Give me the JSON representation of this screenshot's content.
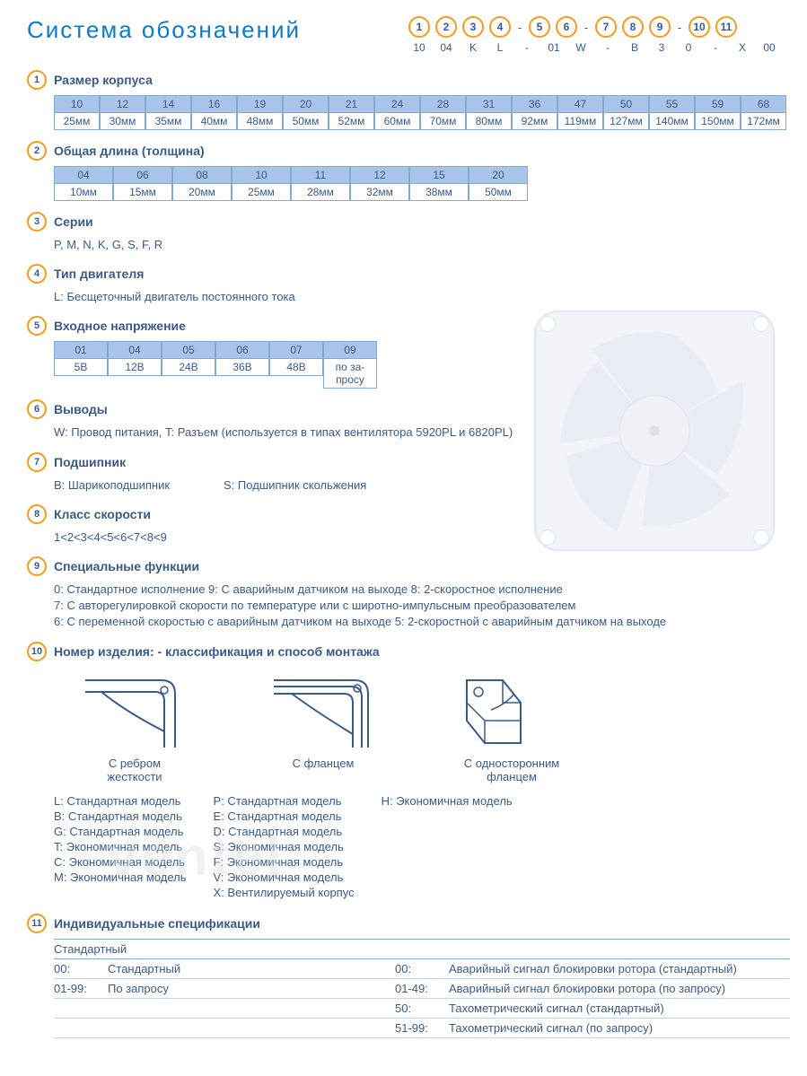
{
  "colors": {
    "accent_orange": "#f59c1a",
    "text_blue": "#3a5a8a",
    "title_blue": "#0a7dc4",
    "header_bg": "#a8c4e8",
    "border": "#88a8d4",
    "row_border": "#c8d4e8"
  },
  "title": "Система обозначений",
  "code_positions": [
    "1",
    "2",
    "3",
    "4",
    "5",
    "6",
    "7",
    "8",
    "9",
    "10",
    "11"
  ],
  "code_example": [
    "10",
    "04",
    "K",
    "L",
    "01",
    "W",
    "B",
    "3",
    "0",
    "X",
    "00"
  ],
  "sections": {
    "s1": {
      "title": "Размер корпуса",
      "table": [
        {
          "c": "10",
          "v": "25мм"
        },
        {
          "c": "12",
          "v": "30мм"
        },
        {
          "c": "14",
          "v": "35мм"
        },
        {
          "c": "16",
          "v": "40мм"
        },
        {
          "c": "19",
          "v": "48мм"
        },
        {
          "c": "20",
          "v": "50мм"
        },
        {
          "c": "21",
          "v": "52мм"
        },
        {
          "c": "24",
          "v": "60мм"
        },
        {
          "c": "28",
          "v": "70мм"
        },
        {
          "c": "31",
          "v": "80мм"
        },
        {
          "c": "36",
          "v": "92мм"
        },
        {
          "c": "47",
          "v": "119мм"
        },
        {
          "c": "50",
          "v": "127мм"
        },
        {
          "c": "55",
          "v": "140мм"
        },
        {
          "c": "59",
          "v": "150мм"
        },
        {
          "c": "68",
          "v": "172мм"
        }
      ]
    },
    "s2": {
      "title": "Общая длина (толщина)",
      "table": [
        {
          "c": "04",
          "v": "10мм"
        },
        {
          "c": "06",
          "v": "15мм"
        },
        {
          "c": "08",
          "v": "20мм"
        },
        {
          "c": "10",
          "v": "25мм"
        },
        {
          "c": "11",
          "v": "28мм"
        },
        {
          "c": "12",
          "v": "32мм"
        },
        {
          "c": "15",
          "v": "38мм"
        },
        {
          "c": "20",
          "v": "50мм"
        }
      ]
    },
    "s3": {
      "title": "Серии",
      "text": "P, M, N, K, G, S, F, R"
    },
    "s4": {
      "title": "Тип двигателя",
      "text": "L: Бесщеточный двигатель постоянного тока"
    },
    "s5": {
      "title": "Входное напряжение",
      "table": [
        {
          "c": "01",
          "v": "5В"
        },
        {
          "c": "04",
          "v": "12В"
        },
        {
          "c": "05",
          "v": "24В"
        },
        {
          "c": "06",
          "v": "36В"
        },
        {
          "c": "07",
          "v": "48В"
        },
        {
          "c": "09",
          "v": "по за-\nпросу"
        }
      ]
    },
    "s6": {
      "title": "Выводы",
      "text": "W: Провод питания, T: Разъем (используется в типах вентилятора  5920PL и 6820PL)"
    },
    "s7": {
      "title": "Подшипник",
      "b": "B: Шарикоподшипник",
      "s": "S: Подшипник скольжения"
    },
    "s8": {
      "title": "Класс скорости",
      "text": "1<2<3<4<5<6<7<8<9"
    },
    "s9": {
      "title": "Специальные функции",
      "lines": [
        "0: Стандартное исполнение   9:  С аварийным датчиком на выходе   8: 2-скоростное исполнение",
        "7: С авторегулировкой скорости по температуре или с широтно-импульсным преобразователем",
        "6: С переменной скоростью с аварийным датчиком на выходе   5: 2-скоростной с аварийным датчиком на выходе"
      ]
    },
    "s10": {
      "title": "Номер изделия: - классификация  и способ монтажа",
      "mounts": [
        {
          "label": "С ребром\nжесткости"
        },
        {
          "label": "С фланцем"
        },
        {
          "label": "С односторонним\nфланцем"
        }
      ],
      "col1": [
        "L:  Стандартная модель",
        "B:  Стандартная модель",
        "G:  Стандартная модель",
        "T:  Экономичная модель",
        "C:  Экономичная модель",
        "M:  Экономичная модель"
      ],
      "col2": [
        "P:  Стандартная модель",
        "E:  Стандартная модель",
        "D:  Стандартная модель",
        "S:  Экономичная модель",
        "F:  Экономичная модель",
        "V:  Экономичная модель",
        "X:  Вентилируемый корпус"
      ],
      "col3": [
        "H:  Экономичная модель"
      ]
    },
    "s11": {
      "title": "Индивидуальные спецификации",
      "head": "Стандартный",
      "rows": [
        {
          "lc": "00:",
          "lt": "Стандартный",
          "rc": "00:",
          "rt": "Аварийный сигнал блокировки ротора (стандартный)"
        },
        {
          "lc": "01-99:",
          "lt": "По запросу",
          "rc": "01-49:",
          "rt": "Аварийный сигнал блокировки ротора (по запросу)"
        },
        {
          "lc": "",
          "lt": "",
          "rc": "50:",
          "rt": "Тахометрический сигнал (стандартный)"
        },
        {
          "lc": "",
          "lt": "",
          "rc": "51-99:",
          "rt": "Тахометрический сигнал (по запросу)"
        }
      ]
    }
  },
  "watermark": "ventel"
}
